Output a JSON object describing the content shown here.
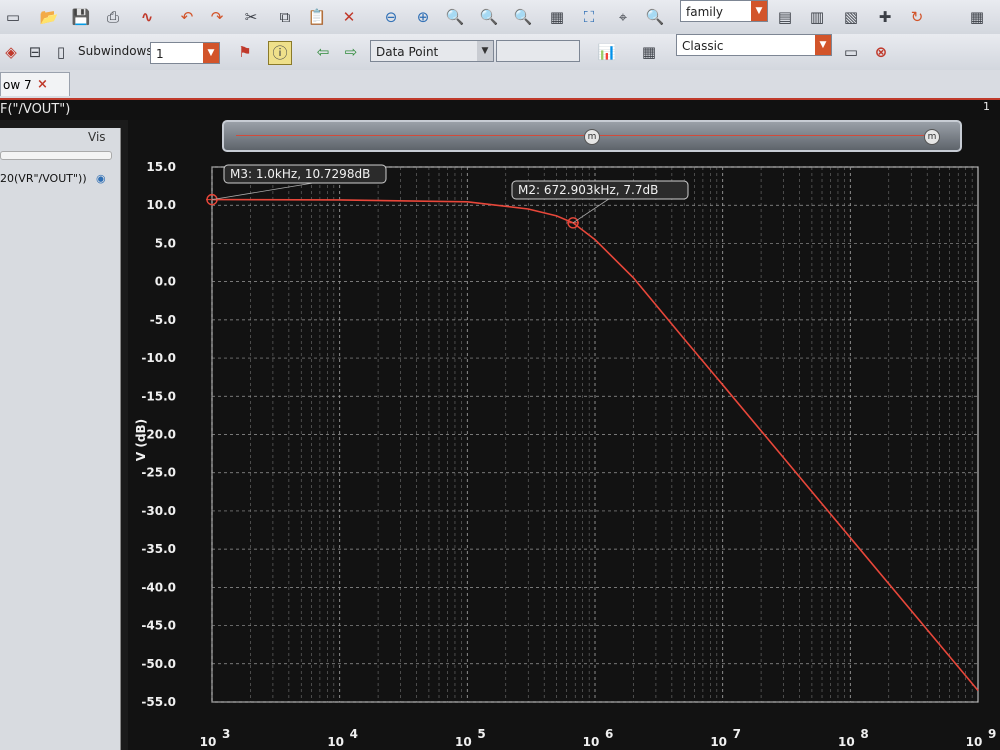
{
  "toolbar1": {
    "family_value": "family"
  },
  "toolbar2": {
    "subwindows_label": "Subwindows:",
    "subwindows_value": "1",
    "marker_type_value": "Data Point",
    "style_value": "Classic"
  },
  "tab": {
    "label": "ow 7",
    "close": "×"
  },
  "window": {
    "title": "F(\"/VOUT\")",
    "number": "1"
  },
  "panel": {
    "vis_header": "Vis",
    "trace_name": "20(VR\"/VOUT\"))",
    "eye_icon": "eye-icon"
  },
  "markers": {
    "m3_label": "M3: 1.0kHz, 10.7298dB",
    "m2_label": "M2: 672.903kHz, 7.7dB",
    "zoom_handle": "m"
  },
  "colors": {
    "trace": "#e8473a",
    "grid": "#9a9a9a",
    "accent": "#c03a2b"
  },
  "chart_data": {
    "type": "line",
    "ylabel": "V (dB)",
    "xscale": "log",
    "xlim": [
      1000,
      1000000000
    ],
    "ylim": [
      -55,
      15
    ],
    "yticks": [
      "15.0",
      "10.0",
      "5.0",
      "0.0",
      "-5.0",
      "-10.0",
      "-15.0",
      "-20.0",
      "-25.0",
      "-30.0",
      "-35.0",
      "-40.0",
      "-45.0",
      "-50.0",
      "-55.0"
    ],
    "xtick_mantissa": "10",
    "xtick_exponents": [
      "3",
      "4",
      "5",
      "6",
      "7",
      "8",
      "9"
    ],
    "grid": true,
    "series": [
      {
        "x": [
          1000,
          10000,
          100000,
          300000,
          500000,
          672903,
          1000000,
          2000000,
          5000000,
          10000000,
          100000000,
          1000000000
        ],
        "y": [
          10.73,
          10.7,
          10.45,
          9.5,
          8.6,
          7.7,
          5.5,
          0.5,
          -7.5,
          -13.5,
          -33.5,
          -53.5
        ]
      }
    ],
    "markers": [
      {
        "name": "M3",
        "x": 1000,
        "y": 10.7298
      },
      {
        "name": "M2",
        "x": 672903,
        "y": 7.7
      }
    ]
  }
}
